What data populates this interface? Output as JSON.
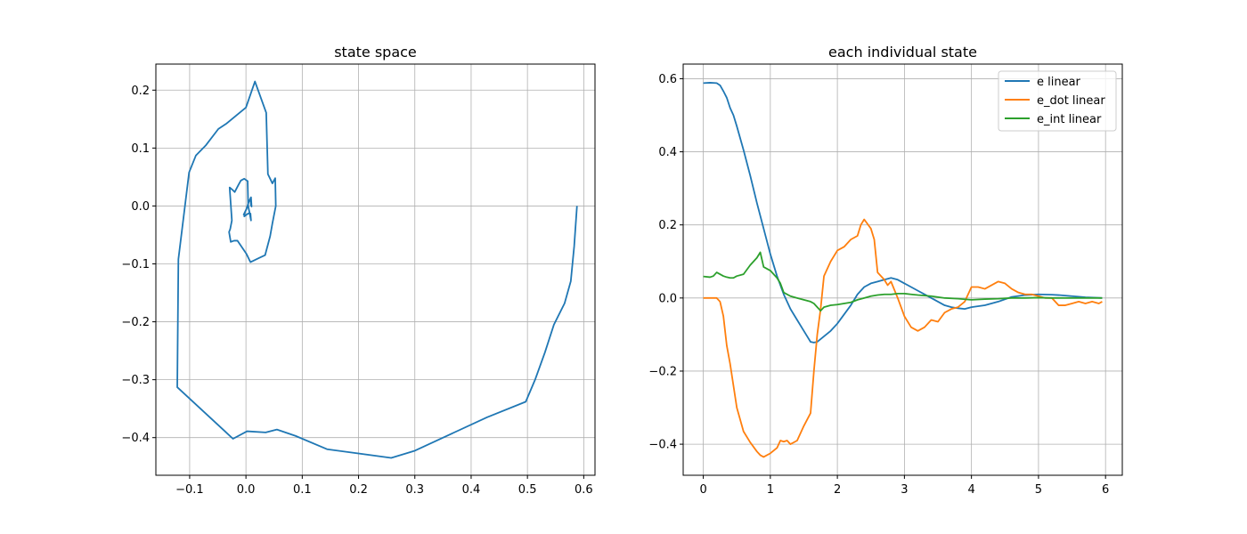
{
  "chart_data": [
    {
      "type": "line",
      "title": "state space",
      "xlabel": "",
      "ylabel": "",
      "xlim": [
        -0.16,
        0.62
      ],
      "ylim": [
        -0.465,
        0.245
      ],
      "xticks": [
        -0.1,
        0.0,
        0.1,
        0.2,
        0.3,
        0.4,
        0.5,
        0.6
      ],
      "xtick_labels": [
        "−0.1",
        "0.0",
        "0.1",
        "0.2",
        "0.3",
        "0.4",
        "0.5",
        "0.6"
      ],
      "yticks": [
        -0.4,
        -0.3,
        -0.2,
        -0.1,
        0.0,
        0.1,
        0.2
      ],
      "ytick_labels": [
        "−0.4",
        "−0.3",
        "−0.2",
        "−0.1",
        "0.0",
        "0.1",
        "0.2"
      ],
      "grid": true,
      "series": [
        {
          "color": "#1f77b4",
          "x": [
            0.588,
            0.583,
            0.577,
            0.566,
            0.547,
            0.531,
            0.514,
            0.497,
            0.428,
            0.299,
            0.258,
            0.144,
            0.088,
            0.055,
            0.035,
            0.002,
            -0.023,
            -0.122,
            -0.12,
            -0.101,
            -0.089,
            -0.071,
            -0.049,
            -0.035,
            0.0,
            0.016,
            0.036,
            0.039,
            0.047,
            0.052,
            0.053,
            0.047,
            0.043,
            0.034,
            0.023,
            0.008,
            0.001,
            -0.015,
            -0.021,
            -0.027,
            -0.03,
            -0.028,
            -0.025,
            -0.029,
            -0.023,
            -0.02,
            -0.013,
            -0.009,
            -0.003,
            0.003,
            0.004,
            0.009,
            0.008,
            0.004,
            -0.003,
            -0.002,
            -0.004,
            0.001,
            0.005,
            0.009,
            0.01,
            0.008,
            0.009
          ],
          "y": [
            0.0,
            -0.07,
            -0.13,
            -0.168,
            -0.205,
            -0.253,
            -0.299,
            -0.338,
            -0.365,
            -0.423,
            -0.435,
            -0.42,
            -0.397,
            -0.386,
            -0.391,
            -0.389,
            -0.402,
            -0.313,
            -0.092,
            0.058,
            0.087,
            0.105,
            0.133,
            0.142,
            0.17,
            0.215,
            0.161,
            0.055,
            0.039,
            0.048,
            0.0,
            -0.03,
            -0.052,
            -0.085,
            -0.09,
            -0.097,
            -0.083,
            -0.06,
            -0.06,
            -0.062,
            -0.045,
            -0.04,
            -0.025,
            0.032,
            0.027,
            0.024,
            0.037,
            0.044,
            0.047,
            0.043,
            0.0,
            -0.025,
            -0.013,
            -0.013,
            -0.018,
            -0.012,
            -0.015,
            -0.005,
            0.007,
            0.015,
            -0.001,
            0.013,
            0.0
          ]
        }
      ]
    },
    {
      "type": "line",
      "title": "each individual state",
      "xlabel": "",
      "ylabel": "",
      "xlim": [
        -0.3,
        6.25
      ],
      "ylim": [
        -0.485,
        0.64
      ],
      "xticks": [
        0,
        1,
        2,
        3,
        4,
        5,
        6
      ],
      "xtick_labels": [
        "0",
        "1",
        "2",
        "3",
        "4",
        "5",
        "6"
      ],
      "yticks": [
        -0.4,
        -0.2,
        0.0,
        0.2,
        0.4,
        0.6
      ],
      "ytick_labels": [
        "−0.4",
        "−0.2",
        "0.0",
        "0.2",
        "0.4",
        "0.6"
      ],
      "grid": true,
      "legend_position": "top-right",
      "series": [
        {
          "name": "e linear",
          "color": "#1f77b4",
          "x": [
            0,
            0.1,
            0.2,
            0.25,
            0.3,
            0.35,
            0.4,
            0.45,
            0.5,
            0.6,
            0.7,
            0.8,
            0.9,
            1.0,
            1.1,
            1.2,
            1.3,
            1.4,
            1.5,
            1.6,
            1.65,
            1.7,
            1.8,
            1.9,
            2.0,
            2.1,
            2.2,
            2.3,
            2.4,
            2.5,
            2.6,
            2.7,
            2.8,
            2.9,
            3.0,
            3.1,
            3.2,
            3.3,
            3.4,
            3.5,
            3.6,
            3.7,
            3.8,
            3.9,
            4.0,
            4.2,
            4.4,
            4.6,
            4.8,
            5.0,
            5.2,
            5.3,
            5.5,
            5.7,
            5.95
          ],
          "y": [
            0.588,
            0.589,
            0.588,
            0.582,
            0.566,
            0.548,
            0.52,
            0.5,
            0.47,
            0.405,
            0.335,
            0.26,
            0.19,
            0.12,
            0.06,
            0.01,
            -0.03,
            -0.06,
            -0.09,
            -0.12,
            -0.122,
            -0.12,
            -0.105,
            -0.09,
            -0.07,
            -0.045,
            -0.02,
            0.01,
            0.03,
            0.04,
            0.045,
            0.05,
            0.055,
            0.05,
            0.04,
            0.03,
            0.02,
            0.01,
            0.0,
            -0.01,
            -0.02,
            -0.025,
            -0.028,
            -0.03,
            -0.025,
            -0.02,
            -0.01,
            0.003,
            0.008,
            0.01,
            0.009,
            0.008,
            0.005,
            0.002,
            0.0
          ]
        },
        {
          "name": "e_dot linear",
          "color": "#ff7f0e",
          "x": [
            0,
            0.1,
            0.2,
            0.25,
            0.3,
            0.35,
            0.4,
            0.45,
            0.5,
            0.6,
            0.7,
            0.8,
            0.85,
            0.9,
            1.0,
            1.1,
            1.15,
            1.2,
            1.25,
            1.3,
            1.4,
            1.5,
            1.6,
            1.65,
            1.7,
            1.75,
            1.8,
            1.85,
            1.9,
            2.0,
            2.1,
            2.2,
            2.3,
            2.35,
            2.4,
            2.5,
            2.55,
            2.6,
            2.7,
            2.75,
            2.8,
            2.9,
            3.0,
            3.1,
            3.2,
            3.3,
            3.4,
            3.5,
            3.6,
            3.7,
            3.8,
            3.9,
            4.0,
            4.1,
            4.2,
            4.3,
            4.4,
            4.5,
            4.6,
            4.7,
            4.8,
            4.9,
            5.0,
            5.1,
            5.2,
            5.3,
            5.4,
            5.5,
            5.6,
            5.7,
            5.8,
            5.9,
            5.95
          ],
          "y": [
            0.0,
            0.0,
            0.0,
            -0.01,
            -0.05,
            -0.13,
            -0.18,
            -0.24,
            -0.3,
            -0.365,
            -0.395,
            -0.42,
            -0.43,
            -0.435,
            -0.425,
            -0.41,
            -0.39,
            -0.393,
            -0.39,
            -0.4,
            -0.39,
            -0.35,
            -0.315,
            -0.2,
            -0.1,
            -0.03,
            0.06,
            0.08,
            0.1,
            0.13,
            0.14,
            0.16,
            0.17,
            0.2,
            0.215,
            0.19,
            0.16,
            0.07,
            0.05,
            0.035,
            0.045,
            0.0,
            -0.05,
            -0.08,
            -0.09,
            -0.08,
            -0.06,
            -0.065,
            -0.04,
            -0.03,
            -0.025,
            -0.01,
            0.03,
            0.03,
            0.025,
            0.035,
            0.045,
            0.04,
            0.025,
            0.015,
            0.01,
            0.01,
            0.005,
            0.0,
            0.0,
            -0.02,
            -0.02,
            -0.015,
            -0.01,
            -0.015,
            -0.01,
            -0.015,
            -0.01
          ]
        },
        {
          "name": "e_int linear",
          "color": "#2ca02c",
          "x": [
            0,
            0.1,
            0.15,
            0.2,
            0.3,
            0.35,
            0.4,
            0.45,
            0.5,
            0.6,
            0.7,
            0.8,
            0.85,
            0.9,
            1.0,
            1.1,
            1.15,
            1.2,
            1.3,
            1.4,
            1.5,
            1.6,
            1.65,
            1.7,
            1.75,
            1.8,
            1.9,
            2.0,
            2.1,
            2.2,
            2.3,
            2.4,
            2.5,
            2.6,
            2.7,
            2.8,
            2.9,
            3.0,
            3.1,
            3.2,
            3.4,
            3.6,
            3.8,
            4.0,
            4.2,
            4.4,
            4.6,
            4.8,
            5.0,
            5.2,
            5.4,
            5.6,
            5.8,
            5.95
          ],
          "y": [
            0.059,
            0.057,
            0.06,
            0.07,
            0.06,
            0.057,
            0.055,
            0.055,
            0.06,
            0.065,
            0.09,
            0.11,
            0.125,
            0.085,
            0.075,
            0.055,
            0.04,
            0.015,
            0.005,
            0.0,
            -0.005,
            -0.01,
            -0.015,
            -0.025,
            -0.035,
            -0.025,
            -0.02,
            -0.018,
            -0.015,
            -0.012,
            -0.005,
            0.0,
            0.005,
            0.008,
            0.01,
            0.01,
            0.012,
            0.012,
            0.01,
            0.008,
            0.005,
            0.0,
            -0.002,
            -0.005,
            -0.003,
            -0.002,
            0.0,
            0.0,
            0.001,
            0.0,
            0.0,
            0.0,
            0.0,
            0.0
          ]
        }
      ]
    }
  ]
}
